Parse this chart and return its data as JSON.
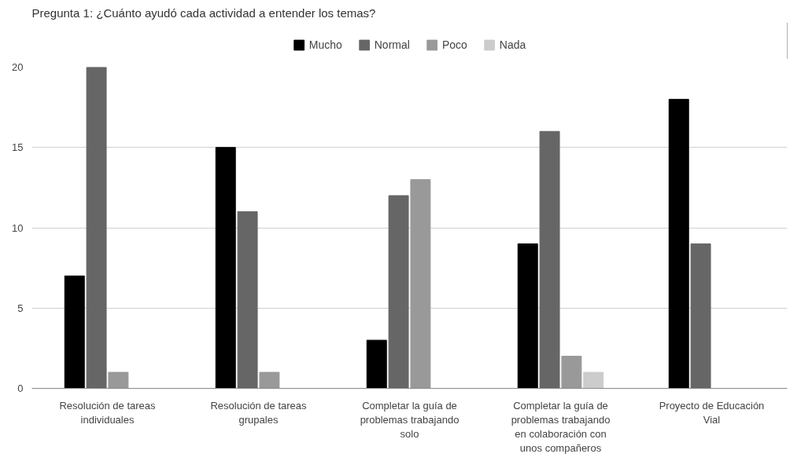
{
  "chart_data": {
    "type": "bar",
    "title": "Pregunta 1: ¿Cuánto ayudó cada actividad a entender los temas?",
    "categories": [
      "Resolución de tareas individuales",
      "Resolución de tareas grupales",
      "Completar la guía de problemas trabajando solo",
      "Completar la guía de problemas trabajando en colaboración con unos compañeros",
      "Proyecto de Educación Vial"
    ],
    "series": [
      {
        "name": "Mucho",
        "color": "#000000",
        "values": [
          7,
          15,
          3,
          9,
          18
        ]
      },
      {
        "name": "Normal",
        "color": "#666666",
        "values": [
          20,
          11,
          12,
          16,
          9
        ]
      },
      {
        "name": "Poco",
        "color": "#999999",
        "values": [
          1,
          1,
          13,
          2,
          0
        ]
      },
      {
        "name": "Nada",
        "color": "#cccccc",
        "values": [
          0,
          0,
          0,
          1,
          0
        ]
      }
    ],
    "ylim": [
      0,
      20
    ],
    "yticks": [
      0,
      5,
      10,
      15,
      20
    ],
    "grid": "y",
    "legend": "top"
  }
}
